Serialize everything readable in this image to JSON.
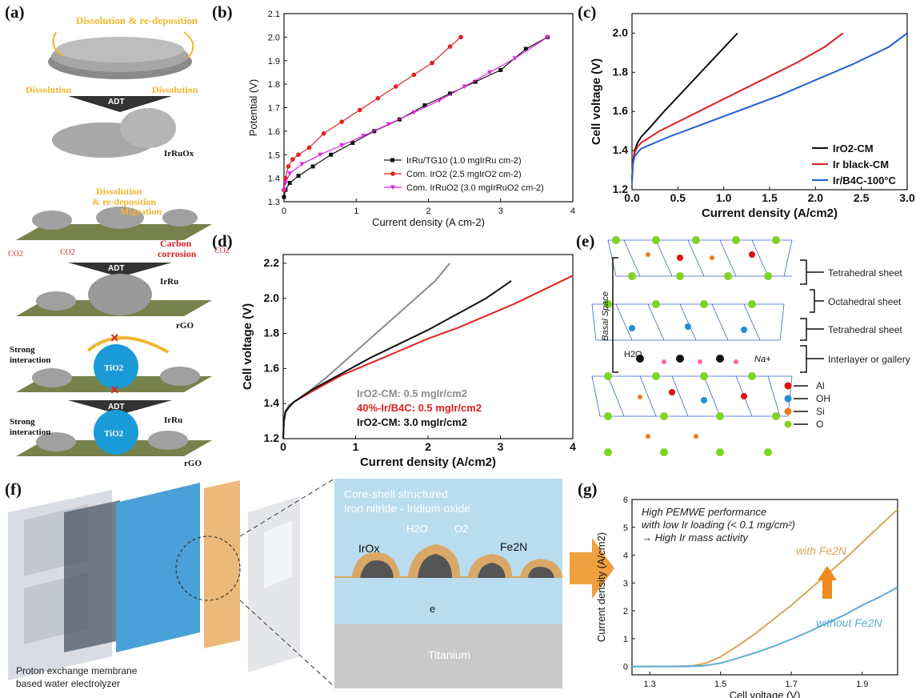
{
  "panels": {
    "a": {
      "label": "(a)",
      "dissolution_redeposition": "Dissolution & re-deposition",
      "dissolution": "Dissolution",
      "adt": "ADT",
      "irruox": "IrRuOx",
      "dissolution2": "Dissolution",
      "redeposition2": "& re-deposition",
      "migration": "Migration",
      "co2": "CO2",
      "carbon": "Carbon",
      "corrosion": "corrosion",
      "irru": "IrRu",
      "rgo": "rGO",
      "strong": "Strong",
      "interaction": "interaction",
      "tio2": "TiO2",
      "colors": {
        "yellow": "#f2b632",
        "red": "#d22",
        "blue": "#1a9ad6"
      }
    },
    "e": {
      "label": "(e)",
      "basal_space": "Basal Space",
      "tetrahedral_sheet": "Tetrahedral sheet",
      "octahedral_sheet": "Octahedral sheet",
      "interlayer": "Interlayer or gallery",
      "h2o": "H2O",
      "na": "Na+",
      "legend": [
        "Al",
        "OH",
        "Si",
        "O"
      ],
      "legend_colors": [
        "#d11",
        "#1e8fd8",
        "#f07820",
        "#7ed321"
      ]
    },
    "f": {
      "label": "(f)",
      "caption1": "Proton exchange membrane",
      "caption2": "based water electrolyzer",
      "title1": "Core-shell structured",
      "title2": "Iron nitride - Iridium oxide",
      "h2o": "H2O",
      "o2": "O2",
      "irox": "IrOx",
      "fe2n": "Fe2N",
      "e": "e",
      "titanium": "Titanium"
    }
  },
  "chart_data": [
    {
      "id": "b",
      "label": "(b)",
      "type": "line",
      "xlabel": "Current density (A cm-2)",
      "ylabel": "Potential (V)",
      "xlim": [
        0,
        4
      ],
      "ylim": [
        1.3,
        2.1
      ],
      "xticks": [
        "0",
        "1",
        "2",
        "3",
        "4"
      ],
      "yticks": [
        "1.3",
        "1.4",
        "1.5",
        "1.6",
        "1.7",
        "1.8",
        "1.9",
        "2.0",
        "2.1"
      ],
      "legend": "bottom-right",
      "series": [
        {
          "name": "IrRu/TG10 (1.0 mgIrRu cm-2)",
          "color": "#111111",
          "marker": "square",
          "x": [
            0,
            0.02,
            0.08,
            0.2,
            0.4,
            0.65,
            0.95,
            1.25,
            1.6,
            1.95,
            2.3,
            2.65,
            3.0,
            3.35,
            3.65
          ],
          "y": [
            1.32,
            1.35,
            1.38,
            1.41,
            1.45,
            1.5,
            1.55,
            1.6,
            1.65,
            1.71,
            1.76,
            1.81,
            1.86,
            1.95,
            2.0
          ]
        },
        {
          "name": "Com. IrO2 (2.5 mgIrO2 cm-2)",
          "color": "#e02020",
          "marker": "circle",
          "x": [
            0,
            0.02,
            0.06,
            0.12,
            0.2,
            0.35,
            0.55,
            0.8,
            1.05,
            1.3,
            1.55,
            1.8,
            2.05,
            2.3,
            2.45
          ],
          "y": [
            1.35,
            1.4,
            1.45,
            1.48,
            1.5,
            1.53,
            1.59,
            1.64,
            1.69,
            1.74,
            1.79,
            1.84,
            1.89,
            1.96,
            2.0
          ]
        },
        {
          "name": "Com. IrRuO2 (3.0 mgIrRuO2 cm-2)",
          "color": "#e020e0",
          "marker": "triangle-down",
          "x": [
            0,
            0.02,
            0.08,
            0.25,
            0.5,
            0.8,
            1.1,
            1.45,
            1.8,
            2.15,
            2.5,
            2.85,
            3.2,
            3.65
          ],
          "y": [
            1.35,
            1.38,
            1.42,
            1.46,
            1.5,
            1.54,
            1.58,
            1.63,
            1.68,
            1.73,
            1.79,
            1.85,
            1.91,
            2.0
          ]
        }
      ]
    },
    {
      "id": "c",
      "label": "(c)",
      "type": "line",
      "xlabel": "Current density (A/cm2)",
      "ylabel": "Cell voltage (V)",
      "xlim": [
        0,
        3.0
      ],
      "ylim": [
        1.2,
        2.1
      ],
      "xticks": [
        "0.0",
        "0.5",
        "1.0",
        "1.5",
        "2.0",
        "2.5",
        "3.0"
      ],
      "yticks": [
        "1.2",
        "1.4",
        "1.6",
        "1.8",
        "2.0"
      ],
      "legend": "bottom-right",
      "series": [
        {
          "name": "IrO2-CM",
          "color": "#111111",
          "x": [
            0,
            0.01,
            0.03,
            0.06,
            0.1,
            0.2,
            0.35,
            0.55,
            0.75,
            0.95,
            1.15
          ],
          "y": [
            1.25,
            1.34,
            1.4,
            1.44,
            1.47,
            1.52,
            1.6,
            1.7,
            1.8,
            1.9,
            2.0
          ]
        },
        {
          "name": "Ir black-CM",
          "color": "#dd1f1f",
          "x": [
            0,
            0.01,
            0.03,
            0.06,
            0.1,
            0.3,
            0.6,
            0.9,
            1.2,
            1.5,
            1.8,
            2.1,
            2.3
          ],
          "y": [
            1.25,
            1.34,
            1.39,
            1.42,
            1.44,
            1.5,
            1.57,
            1.64,
            1.71,
            1.78,
            1.85,
            1.93,
            2.0
          ]
        },
        {
          "name": "Ir/B4C-100°C",
          "color": "#1f5fd0",
          "x": [
            0,
            0.01,
            0.03,
            0.06,
            0.1,
            0.4,
            0.8,
            1.2,
            1.6,
            2.0,
            2.4,
            2.8,
            3.0
          ],
          "y": [
            1.24,
            1.33,
            1.37,
            1.39,
            1.41,
            1.47,
            1.54,
            1.61,
            1.68,
            1.76,
            1.84,
            1.93,
            2.0
          ]
        }
      ]
    },
    {
      "id": "d",
      "label": "(d)",
      "type": "line",
      "xlabel": "Current density (A/cm2)",
      "ylabel": "Cell voltage (V)",
      "xlim": [
        0,
        4
      ],
      "ylim": [
        1.2,
        2.25
      ],
      "xticks": [
        "0",
        "1",
        "2",
        "3",
        "4"
      ],
      "yticks": [
        "1.2",
        "1.4",
        "1.6",
        "1.8",
        "2.0",
        "2.2"
      ],
      "legend": "bottom-right",
      "series": [
        {
          "name": "IrO2-CM: 0.5 mgIr/cm2",
          "color": "#8c8c8c",
          "x": [
            0,
            0.01,
            0.03,
            0.08,
            0.15,
            0.3,
            0.6,
            0.9,
            1.2,
            1.5,
            1.8,
            2.1,
            2.3
          ],
          "y": [
            1.2,
            1.3,
            1.36,
            1.39,
            1.41,
            1.45,
            1.55,
            1.66,
            1.77,
            1.88,
            1.99,
            2.1,
            2.2
          ]
        },
        {
          "name": "40%-Ir/B4C: 0.5 mgIr/cm2",
          "color": "#e02020",
          "x": [
            0,
            0.01,
            0.03,
            0.08,
            0.15,
            0.4,
            0.8,
            1.2,
            1.6,
            2.0,
            2.4,
            2.8,
            3.2,
            3.6,
            4.0
          ],
          "y": [
            1.2,
            1.3,
            1.35,
            1.38,
            1.41,
            1.47,
            1.56,
            1.63,
            1.7,
            1.77,
            1.83,
            1.9,
            1.97,
            2.05,
            2.13
          ]
        },
        {
          "name": "IrO2-CM: 3.0 mgIr/cm2",
          "color": "#111111",
          "x": [
            0,
            0.01,
            0.03,
            0.08,
            0.15,
            0.4,
            0.8,
            1.2,
            1.6,
            2.0,
            2.4,
            2.8,
            3.15
          ],
          "y": [
            1.2,
            1.3,
            1.35,
            1.38,
            1.41,
            1.48,
            1.57,
            1.66,
            1.74,
            1.82,
            1.91,
            2.0,
            2.1
          ]
        }
      ]
    },
    {
      "id": "g",
      "label": "(g)",
      "type": "line",
      "xlabel": "Cell voltage (V)",
      "ylabel": "Current density (A/cm2)",
      "xlim": [
        1.25,
        2.0
      ],
      "ylim": [
        -0.3,
        6
      ],
      "xticks": [
        "1.3",
        "1.5",
        "1.7",
        "1.9"
      ],
      "yticks": [
        "0",
        "1",
        "2",
        "3",
        "4",
        "5",
        "6"
      ],
      "annotation": [
        "High PEMWE performance",
        "with low Ir loading (< 0.1 mg/cm²)",
        "→ High Ir mass activity"
      ],
      "series": [
        {
          "name": "with Fe2N",
          "color": "#d9a55a",
          "x": [
            1.25,
            1.35,
            1.42,
            1.46,
            1.5,
            1.55,
            1.6,
            1.65,
            1.7,
            1.75,
            1.8,
            1.85,
            1.9,
            1.95,
            2.0
          ],
          "y": [
            0,
            0,
            0.02,
            0.12,
            0.35,
            0.75,
            1.2,
            1.7,
            2.2,
            2.75,
            3.3,
            3.85,
            4.45,
            5.05,
            5.65
          ]
        },
        {
          "name": "without Fe2N",
          "color": "#5aaed8",
          "x": [
            1.25,
            1.4,
            1.45,
            1.5,
            1.55,
            1.6,
            1.65,
            1.7,
            1.75,
            1.8,
            1.85,
            1.9,
            1.95,
            2.0
          ],
          "y": [
            0,
            0,
            0.02,
            0.12,
            0.3,
            0.5,
            0.72,
            0.98,
            1.25,
            1.55,
            1.85,
            2.2,
            2.5,
            2.85
          ]
        }
      ]
    }
  ]
}
